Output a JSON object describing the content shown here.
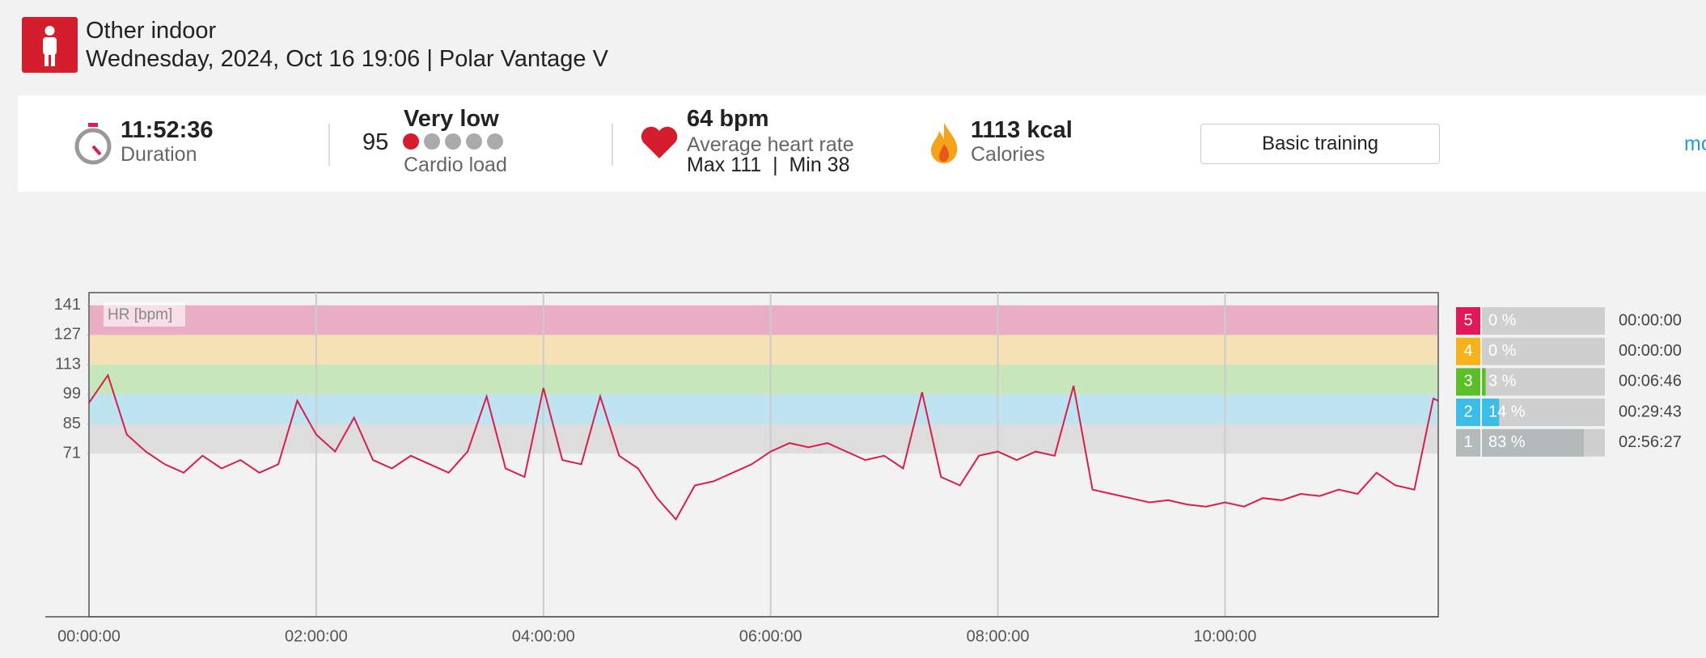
{
  "header": {
    "title": "Other indoor",
    "subtitle": "Wednesday, 2024, Oct 16 19:06 | Polar Vantage V"
  },
  "summary": {
    "duration": "11:52:36",
    "duration_label": "Duration",
    "cardio_value": "95",
    "cardio_level": "Very low",
    "cardio_label": "Cardio load",
    "hr_avg": "64 bpm",
    "hr_label": "Average heart rate",
    "hr_minmax": "Max 111  |  Min 38",
    "calories": "1113 kcal",
    "calories_label": "Calories",
    "button": "Basic training",
    "more": "mo"
  },
  "chart_data": {
    "type": "line",
    "y_label": "HR [bpm]",
    "x": [
      0,
      600,
      1200,
      1800,
      2400,
      3000,
      3600,
      4200,
      4800,
      5400,
      6000,
      6600,
      7200,
      7800,
      8400,
      9000,
      9600,
      10200,
      10800,
      11400,
      12000,
      12600,
      13200,
      13800,
      14400,
      15000,
      15600,
      16200,
      16800,
      17400,
      18000,
      18600,
      19200,
      19800,
      20400,
      21000,
      21600,
      22200,
      22800,
      23400,
      24000,
      24600,
      25200,
      25800,
      26400,
      27000,
      27600,
      28200,
      28800,
      29400,
      30000,
      30600,
      31200,
      31800,
      32400,
      33000,
      33600,
      34200,
      34800,
      35400,
      36000,
      36600,
      37200,
      37800,
      38400,
      39000,
      39600,
      40200,
      40800,
      41400,
      42000,
      42600,
      42756
    ],
    "series": [
      {
        "name": "HR",
        "color": "#d81e4c",
        "values": [
          95,
          108,
          80,
          72,
          66,
          62,
          70,
          64,
          68,
          62,
          66,
          96,
          80,
          72,
          88,
          68,
          64,
          70,
          66,
          62,
          72,
          98,
          64,
          60,
          102,
          68,
          66,
          98,
          70,
          64,
          50,
          40,
          56,
          58,
          62,
          66,
          72,
          76,
          74,
          76,
          72,
          68,
          70,
          64,
          100,
          60,
          56,
          70,
          72,
          68,
          72,
          70,
          103,
          54,
          52,
          50,
          48,
          49,
          47,
          46,
          48,
          46,
          50,
          49,
          52,
          51,
          54,
          52,
          62,
          56,
          54,
          97,
          96
        ]
      }
    ],
    "xlim": [
      0,
      42756
    ],
    "ylim": [
      -6,
      147
    ],
    "xticks": [
      {
        "value": 0,
        "label": "00:00:00"
      },
      {
        "value": 7200,
        "label": "02:00:00"
      },
      {
        "value": 14400,
        "label": "04:00:00"
      },
      {
        "value": 21600,
        "label": "06:00:00"
      },
      {
        "value": 28800,
        "label": "08:00:00"
      },
      {
        "value": 36000,
        "label": "10:00:00"
      }
    ],
    "yticks": [
      71,
      85,
      99,
      113,
      127,
      141
    ],
    "zones": [
      {
        "label": "5",
        "value": 0,
        "value_label": "0 %",
        "time": "00:00:00",
        "color": "#e0195a",
        "band": "#e9aec4"
      },
      {
        "label": "4",
        "value": 0,
        "value_label": "0 %",
        "time": "00:00:00",
        "color": "#f5b21b",
        "band": "#f5e1b3"
      },
      {
        "label": "3",
        "value": 3,
        "value_label": "3 %",
        "time": "00:06:46",
        "color": "#5cbf2a",
        "band": "#c7e6b9"
      },
      {
        "label": "2",
        "value": 14,
        "value_label": "14 %",
        "time": "00:29:43",
        "color": "#3bbde8",
        "band": "#bee3f1"
      },
      {
        "label": "1",
        "value": 83,
        "value_label": "83 %",
        "time": "02:56:27",
        "color": "#b4b9b9",
        "band": "#dddddd"
      }
    ]
  }
}
